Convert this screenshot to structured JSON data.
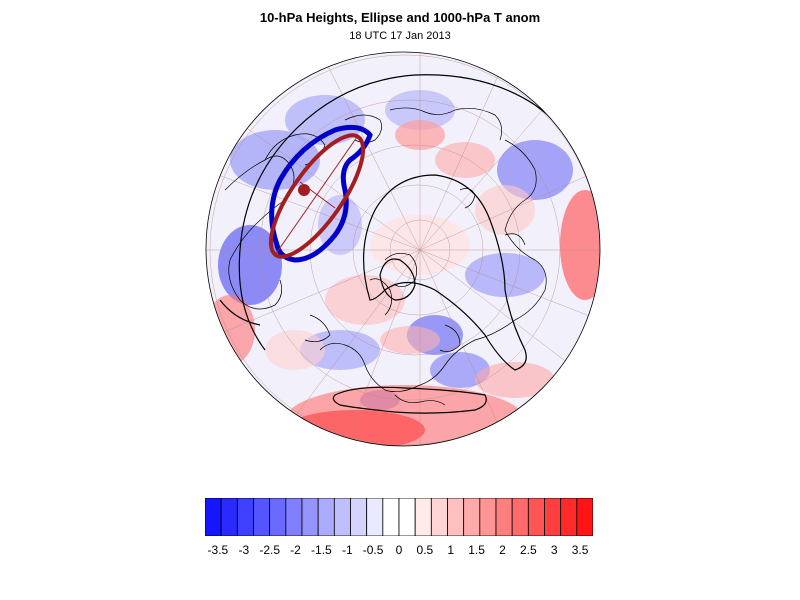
{
  "figure": {
    "title": "10-hPa Heights, Ellipse and 1000-hPa T anom",
    "subtitle": "18 UTC 17 Jan 2013"
  },
  "colorbar": {
    "ticks": [
      "-3.5",
      "-3",
      "-2.5",
      "-2",
      "-1.5",
      "-1",
      "-0.5",
      "0",
      "0.5",
      "1",
      "1.5",
      "2",
      "2.5",
      "3",
      "3.5"
    ],
    "min": -3.75,
    "max": 3.75,
    "colors": [
      "#1515ff",
      "#2a2aff",
      "#3f3fff",
      "#5555ff",
      "#6a6aff",
      "#7f7fff",
      "#9494ff",
      "#aaaaff",
      "#bfbfff",
      "#d4d4ff",
      "#e9e9ff",
      "#ffffff",
      "#ffffff",
      "#ffe9e9",
      "#ffd4d4",
      "#ffbfbf",
      "#ffaaaa",
      "#ff9494",
      "#ff7f7f",
      "#ff6a6a",
      "#ff5555",
      "#ff3f3f",
      "#ff2a2a",
      "#ff1515"
    ]
  },
  "map": {
    "projection": "polar-stereographic-north",
    "ellipse_color": "#a31f1f",
    "height_contour_color": "#0000c8",
    "coastline_color": "#000000"
  }
}
